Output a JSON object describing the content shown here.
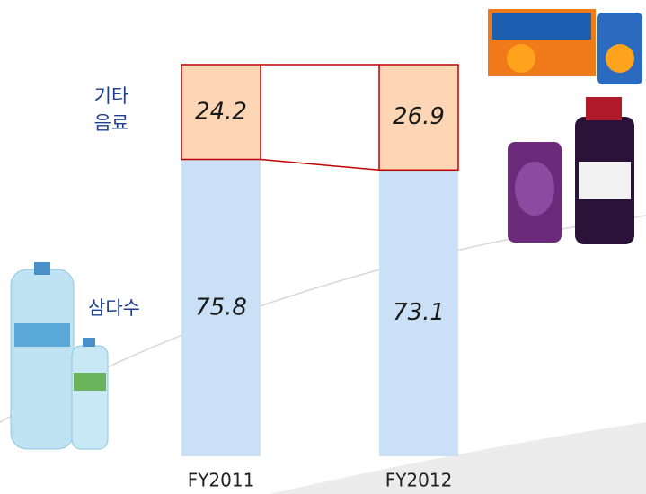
{
  "chart_data": {
    "type": "stacked-bar",
    "categories": [
      "FY2011",
      "FY2012"
    ],
    "series": [
      {
        "name": "삼다수",
        "color": "#c9e0f6",
        "values": [
          75.8,
          73.1
        ]
      },
      {
        "name": "기타 음료",
        "color": "#fcd6b5",
        "values": [
          24.2,
          26.9
        ]
      }
    ],
    "ylim": [
      0,
      100
    ]
  }
}
